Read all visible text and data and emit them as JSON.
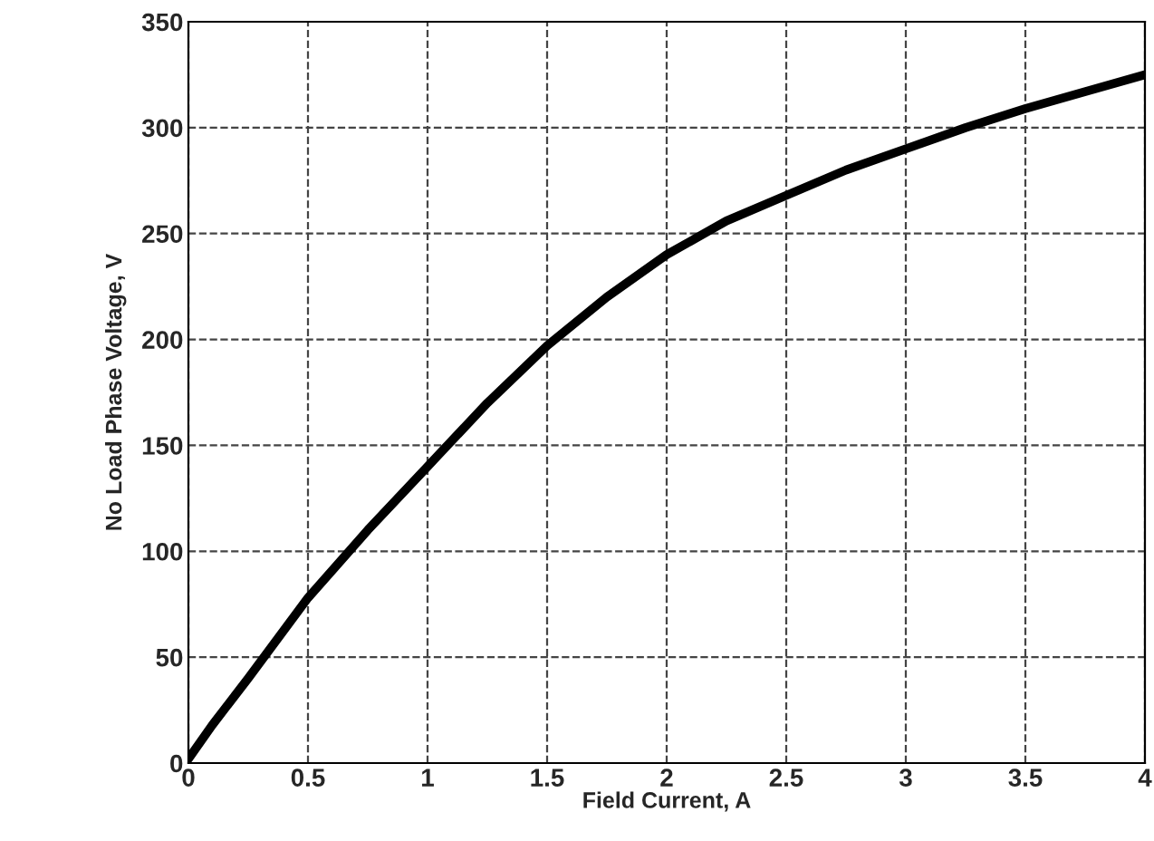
{
  "chart_data": {
    "type": "line",
    "xlabel": "Field Current, A",
    "ylabel": "No Load Phase Voltage, V",
    "x": [
      0,
      0.1,
      0.25,
      0.5,
      0.75,
      1.0,
      1.25,
      1.5,
      1.75,
      2.0,
      2.25,
      2.5,
      2.75,
      3.0,
      3.25,
      3.5,
      3.75,
      4.0
    ],
    "series": [
      {
        "color": "#000000",
        "values": [
          2,
          18,
          40,
          78,
          110,
          140,
          170,
          197,
          220,
          240,
          256,
          268,
          280,
          290,
          300,
          309,
          317,
          325
        ]
      }
    ],
    "xlim": [
      0,
      4
    ],
    "ylim": [
      0,
      350
    ],
    "xticks": [
      0,
      0.5,
      1,
      1.5,
      2,
      2.5,
      3,
      3.5,
      4
    ],
    "yticks": [
      0,
      50,
      100,
      150,
      200,
      250,
      300,
      350
    ],
    "grid": true,
    "line_style": "solid",
    "marker": "none"
  }
}
